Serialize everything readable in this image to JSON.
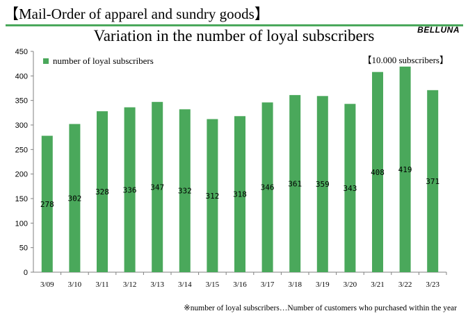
{
  "header": {
    "title": "【Mail-Order of apparel and sundry goods】"
  },
  "brand": {
    "name": "BELLUNA"
  },
  "colors": {
    "accent": "#4aa85b",
    "bar": "#4aa85b",
    "axis": "#808080"
  },
  "chart_data": {
    "type": "bar",
    "title": "Variation in the number of loyal subscribers",
    "unit_note": "【10.000 subscribers】",
    "categories": [
      "3/09",
      "3/10",
      "3/11",
      "3/12",
      "3/13",
      "3/14",
      "3/15",
      "3/16",
      "3/17",
      "3/18",
      "3/19",
      "3/20",
      "3/21",
      "3/22",
      "3/23"
    ],
    "series": [
      {
        "name": "number of loyal subscribers",
        "values": [
          278,
          302,
          328,
          336,
          347,
          332,
          312,
          318,
          346,
          361,
          359,
          343,
          408,
          419,
          371
        ]
      }
    ],
    "ylim": [
      0,
      450
    ],
    "yticks": [
      0,
      50,
      100,
      150,
      200,
      250,
      300,
      350,
      400,
      450
    ],
    "grid": false,
    "legend_position": "top-left"
  },
  "footnote": "※number of loyal subscribers…Number of customers who purchased within the year"
}
